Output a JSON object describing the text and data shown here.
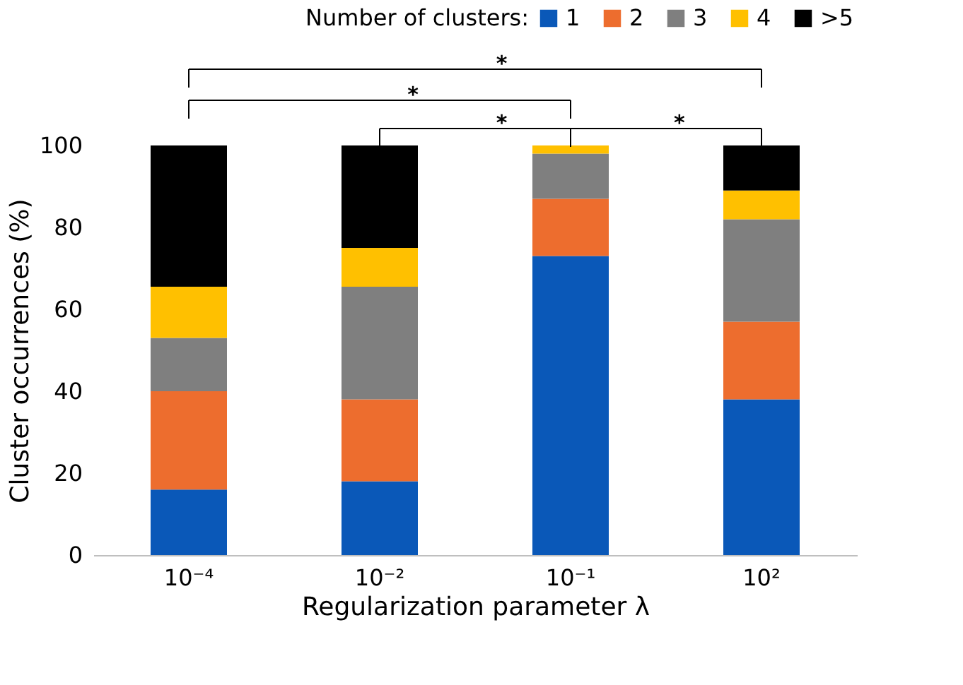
{
  "chart_data": {
    "type": "bar",
    "stacked": true,
    "legend_title": "Number of clusters:",
    "legend": "top",
    "xlabel": "Regularization parameter λ",
    "ylabel": "Cluster occurrences (%)",
    "categories": [
      "10⁻⁴",
      "10⁻²",
      "10⁻¹",
      "10²"
    ],
    "series": [
      {
        "name": "1",
        "color": "#0a58b8",
        "values": [
          16,
          18,
          73,
          38
        ]
      },
      {
        "name": "2",
        "color": "#ed6d2e",
        "values": [
          24,
          20,
          14,
          19
        ]
      },
      {
        "name": "3",
        "color": "#7f7f7f",
        "values": [
          13,
          27.5,
          11,
          25
        ]
      },
      {
        "name": "4",
        "color": "#ffc000",
        "values": [
          12.5,
          9.5,
          2,
          7
        ]
      },
      {
        "name": ">5",
        "color": "#000000",
        "values": [
          34.5,
          25,
          0,
          11
        ]
      }
    ],
    "ylim": [
      0,
      100
    ],
    "yticks": [
      0,
      20,
      40,
      60,
      80,
      100
    ],
    "grid": false,
    "annotations": [
      "*",
      "*",
      "*",
      "*"
    ]
  }
}
